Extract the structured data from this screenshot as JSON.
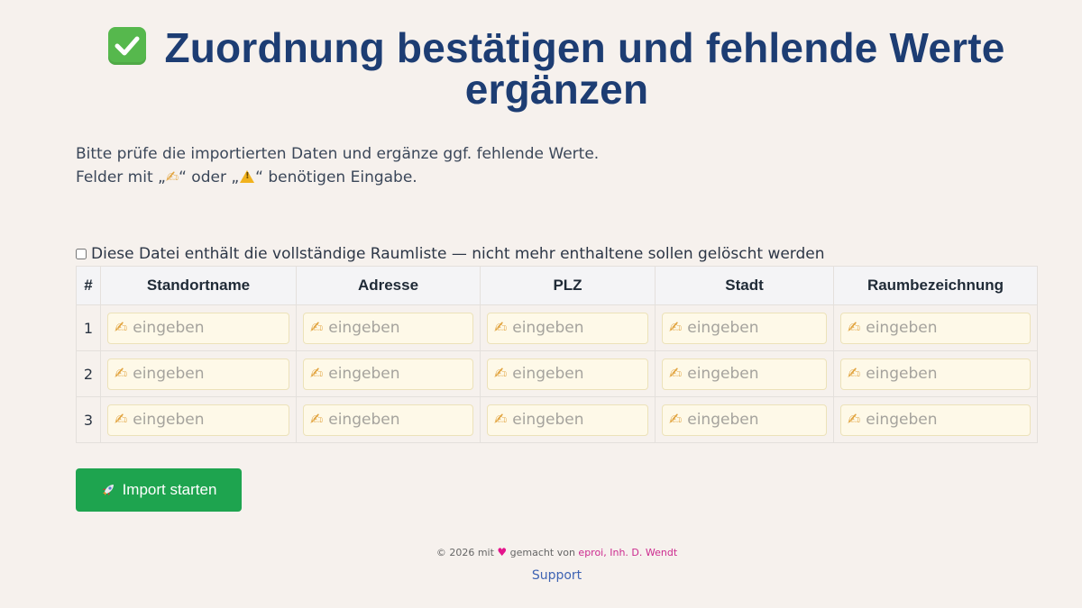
{
  "header": {
    "title": "Zuordnung bestätigen und fehlende Werte ergänzen"
  },
  "intro": {
    "line1": "Bitte prüfe die importierten Daten und ergänze ggf. fehlende Werte.",
    "line2_prefix": "Felder mit „",
    "line2_mid": "“ oder „",
    "line2_suffix": "“ benötigen Eingabe."
  },
  "options": {
    "full_list_label": "Diese Datei enthält die vollständige Raumliste — nicht mehr enthaltene sollen gelöscht werden",
    "full_list_checked": false
  },
  "table": {
    "headers": [
      "#",
      "Standortname",
      "Adresse",
      "PLZ",
      "Stadt",
      "Raumbezeichnung"
    ],
    "rows": [
      {
        "num": "1",
        "cells": [
          "",
          "",
          "",
          "",
          ""
        ]
      },
      {
        "num": "2",
        "cells": [
          "",
          "",
          "",
          "",
          ""
        ]
      },
      {
        "num": "3",
        "cells": [
          "",
          "",
          "",
          "",
          ""
        ]
      }
    ],
    "placeholder": "eingeben"
  },
  "actions": {
    "import_label": "Import starten"
  },
  "footer": {
    "copyright": "© 2026 mit",
    "made_by": "gemacht von",
    "company": "eproi, Inh. D. Wendt",
    "support": "Support"
  },
  "colors": {
    "background": "#f6f1ed",
    "title": "#1d3d73",
    "button": "#1ea44f",
    "input_bg": "#fef9e8",
    "accent_pink": "#cc2b8f",
    "link_blue": "#3e63b3"
  },
  "icons": {
    "title_icon": "check-mark-icon",
    "input_icon": "writing-hand-icon",
    "warning_icon": "warning-icon",
    "button_icon": "rocket-icon",
    "heart_icon": "heart-icon"
  }
}
